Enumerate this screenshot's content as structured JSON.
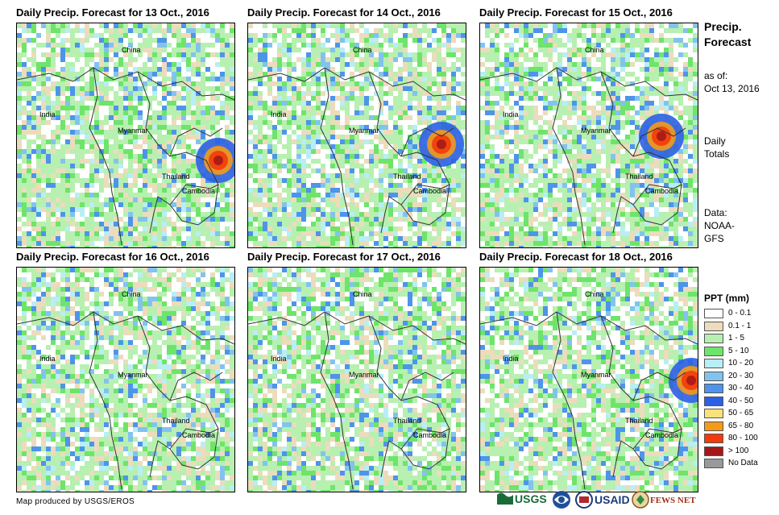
{
  "panels": [
    {
      "title": "Daily Precip. Forecast for 13 Oct., 2016"
    },
    {
      "title": "Daily Precip. Forecast for 14 Oct., 2016"
    },
    {
      "title": "Daily Precip. Forecast for 15 Oct., 2016"
    },
    {
      "title": "Daily Precip. Forecast for 16 Oct., 2016"
    },
    {
      "title": "Daily Precip. Forecast for 17 Oct., 2016"
    },
    {
      "title": "Daily Precip. Forecast for 18 Oct., 2016"
    }
  ],
  "map_labels": {
    "china": "China",
    "india": "India",
    "myanmar": "Myanmar",
    "thailand": "Thailand",
    "cambodia": "Cambodia"
  },
  "sidebar": {
    "title_line1": "Precip.",
    "title_line2": "Forecast",
    "asof_label": "as of:",
    "asof_date": "Oct 13, 2016",
    "daily_line1": "Daily",
    "daily_line2": "Totals",
    "data_line1": "Data:",
    "data_line2": "NOAA-",
    "data_line3": "GFS"
  },
  "legend": {
    "title": "PPT (mm)",
    "items": [
      {
        "label": "0 - 0.1",
        "color": "#ffffff"
      },
      {
        "label": "0.1 - 1",
        "color": "#ecdcbc"
      },
      {
        "label": "1 - 5",
        "color": "#b7f0b0"
      },
      {
        "label": "5 - 10",
        "color": "#6ee46a"
      },
      {
        "label": "10 - 20",
        "color": "#b8eef5"
      },
      {
        "label": "20 - 30",
        "color": "#82c3ee"
      },
      {
        "label": "30 - 40",
        "color": "#4d94ea"
      },
      {
        "label": "40 - 50",
        "color": "#2d5fe4"
      },
      {
        "label": "50 - 65",
        "color": "#f9e27c"
      },
      {
        "label": "65 - 80",
        "color": "#f59a18"
      },
      {
        "label": "80 - 100",
        "color": "#f43a0a"
      },
      {
        "label": "> 100",
        "color": "#a51818"
      },
      {
        "label": "No Data",
        "color": "#999999"
      }
    ]
  },
  "footer": {
    "credit": "Map produced by USGS/EROS"
  },
  "logos": {
    "usgs": "USGS",
    "usaid": "USAID",
    "fewsnet": "FEWS NET"
  }
}
